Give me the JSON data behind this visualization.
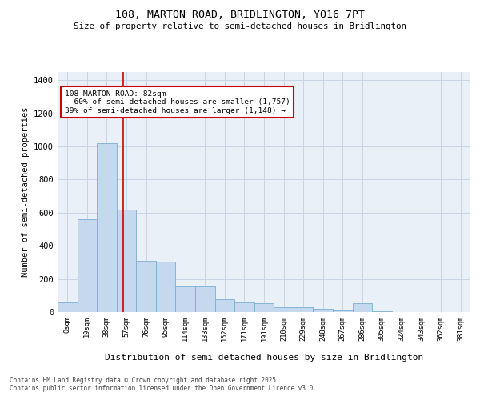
{
  "title_line1": "108, MARTON ROAD, BRIDLINGTON, YO16 7PT",
  "title_line2": "Size of property relative to semi-detached houses in Bridlington",
  "xlabel": "Distribution of semi-detached houses by size in Bridlington",
  "ylabel": "Number of semi-detached properties",
  "footnote": "Contains HM Land Registry data © Crown copyright and database right 2025.\nContains public sector information licensed under the Open Government Licence v3.0.",
  "bin_labels": [
    "0sqm",
    "19sqm",
    "38sqm",
    "57sqm",
    "76sqm",
    "95sqm",
    "114sqm",
    "133sqm",
    "152sqm",
    "171sqm",
    "191sqm",
    "210sqm",
    "229sqm",
    "248sqm",
    "267sqm",
    "286sqm",
    "305sqm",
    "324sqm",
    "343sqm",
    "362sqm",
    "381sqm"
  ],
  "bar_values": [
    60,
    560,
    1020,
    620,
    310,
    305,
    155,
    155,
    75,
    60,
    55,
    30,
    30,
    20,
    10,
    55,
    5,
    2,
    2,
    0,
    0
  ],
  "bar_color": "#c5d8ee",
  "bar_edge_color": "#7aadd4",
  "grid_color": "#c8d4e4",
  "bg_color": "#eaf0f8",
  "vline_x": 3.32,
  "vline_color": "#cc0000",
  "annotation_text": "108 MARTON ROAD: 82sqm\n← 60% of semi-detached houses are smaller (1,757)\n39% of semi-detached houses are larger (1,148) →",
  "ylim": [
    0,
    1450
  ],
  "yticks": [
    0,
    200,
    400,
    600,
    800,
    1000,
    1200,
    1400
  ]
}
